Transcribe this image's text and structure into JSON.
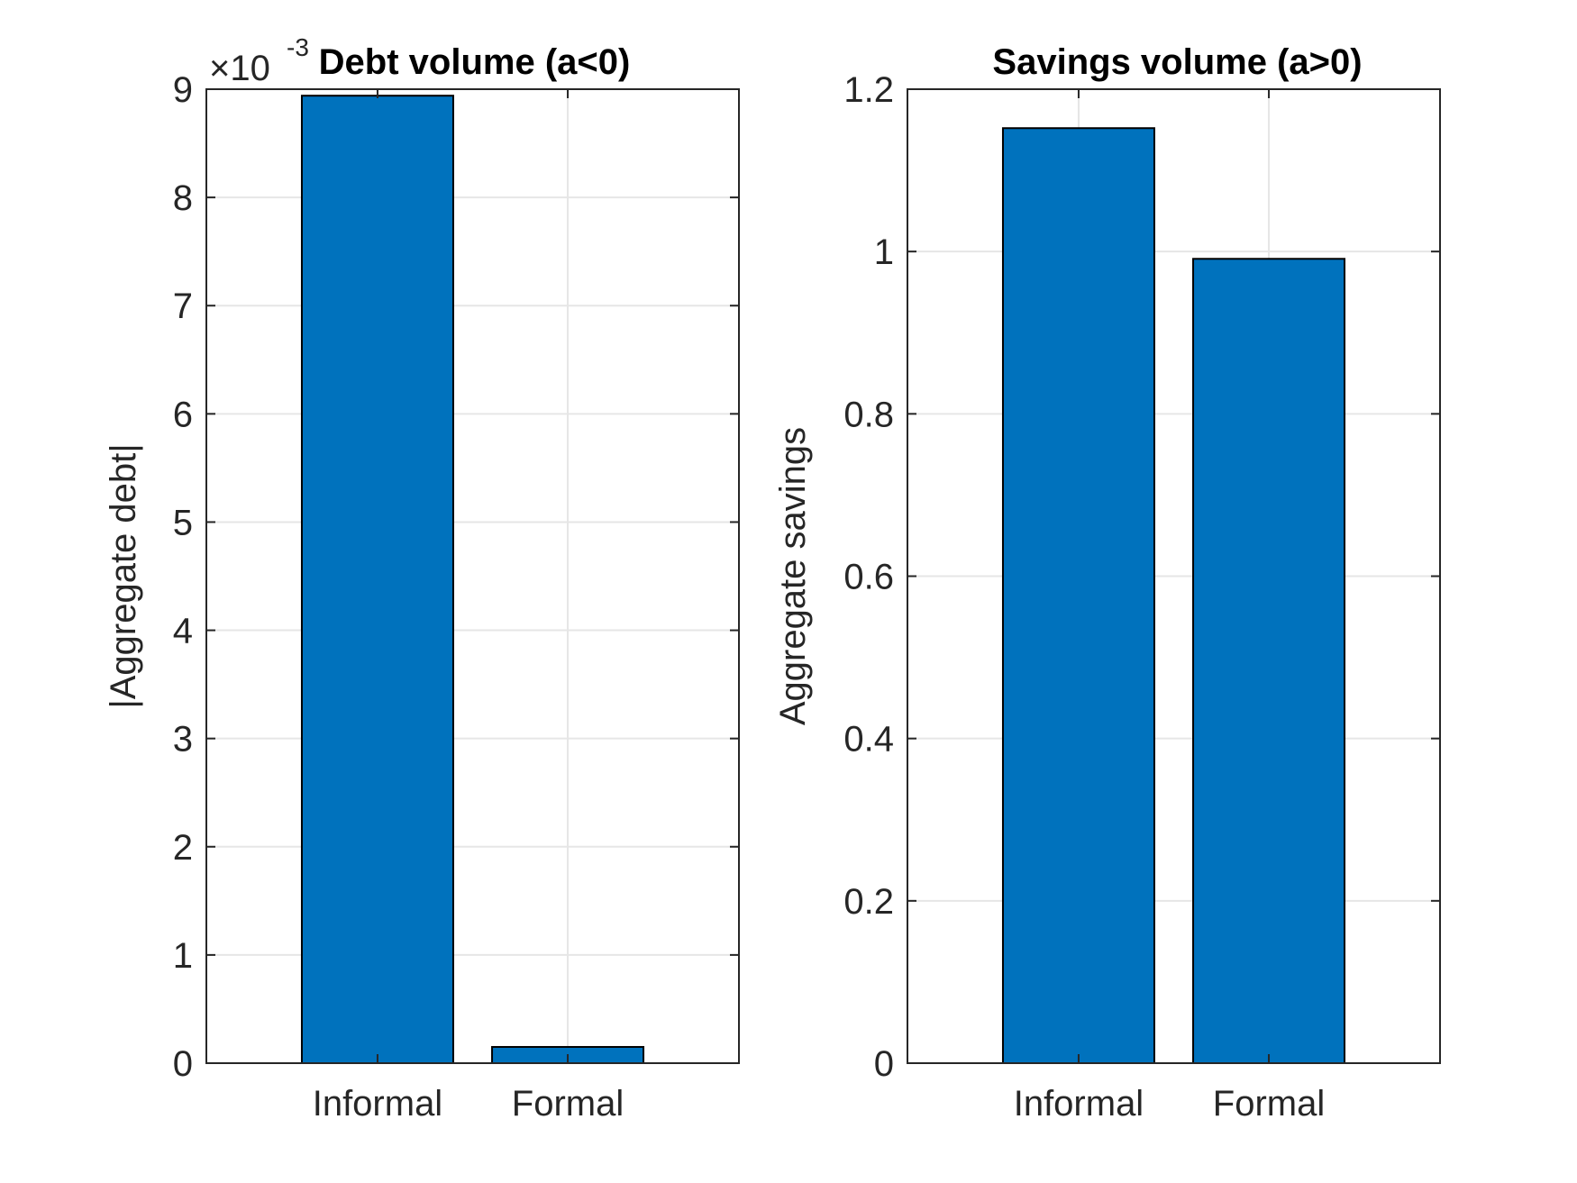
{
  "chart_data": [
    {
      "type": "bar",
      "title": "Debt volume (a<0)",
      "xlabel": "",
      "ylabel": "|Aggregate debt|",
      "categories": [
        "Informal",
        "Formal"
      ],
      "values": [
        0.00894,
        0.00015
      ],
      "ylim": [
        0,
        0.009
      ],
      "yticks": [
        0,
        1,
        2,
        3,
        4,
        5,
        6,
        7,
        8,
        9
      ],
      "ytick_labels": [
        "0",
        "1",
        "2",
        "3",
        "4",
        "5",
        "6",
        "7",
        "8",
        "9"
      ],
      "exponent_label": "×10",
      "exponent_power": "-3",
      "grid": true,
      "bar_color": "#0072BD"
    },
    {
      "type": "bar",
      "title": "Savings volume (a>0)",
      "xlabel": "",
      "ylabel": "Aggregate savings",
      "categories": [
        "Informal",
        "Formal"
      ],
      "values": [
        1.152,
        0.991
      ],
      "ylim": [
        0,
        1.2
      ],
      "yticks": [
        0,
        0.2,
        0.4,
        0.6,
        0.8,
        1.0,
        1.2
      ],
      "ytick_labels": [
        "0",
        "0.2",
        "0.4",
        "0.6",
        "0.8",
        "1",
        "1.2"
      ],
      "grid": true,
      "bar_color": "#0072BD"
    }
  ]
}
